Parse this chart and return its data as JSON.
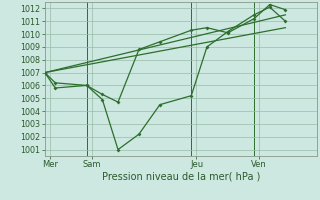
{
  "background_color": "#cce8e0",
  "grid_color": "#99bbaa",
  "line_color": "#2d6e2d",
  "title": "Pression niveau de la mer( hPa )",
  "ylim": [
    1000.5,
    1012.5
  ],
  "yticks": [
    1001,
    1002,
    1003,
    1004,
    1005,
    1006,
    1007,
    1008,
    1009,
    1010,
    1011,
    1012
  ],
  "day_labels": [
    "Mer",
    "Sam",
    "Jeu",
    "Ven"
  ],
  "day_positions": [
    0.5,
    4.5,
    14.5,
    20.5
  ],
  "vline_positions": [
    4,
    14,
    20
  ],
  "xlim": [
    0,
    26
  ],
  "line1_x": [
    0,
    1,
    4,
    5.5,
    7,
    9,
    11,
    14,
    15.5,
    17.5,
    20,
    21.5,
    23
  ],
  "line1_y": [
    1007.0,
    1006.2,
    1006.0,
    1005.3,
    1004.7,
    1008.8,
    1009.4,
    1010.3,
    1010.5,
    1010.1,
    1011.2,
    1012.3,
    1011.9
  ],
  "line2_x": [
    0,
    1,
    4,
    5.5,
    7,
    9,
    11,
    14,
    15.5,
    17.5,
    20,
    21.5,
    23
  ],
  "line2_y": [
    1007.0,
    1005.8,
    1006.0,
    1004.9,
    1001.0,
    1002.2,
    1004.5,
    1005.2,
    1009.0,
    1010.2,
    1011.5,
    1012.1,
    1011.0
  ],
  "line3_x": [
    0,
    23
  ],
  "line3_y": [
    1007.0,
    1011.5
  ],
  "line4_x": [
    0,
    23
  ],
  "line4_y": [
    1007.0,
    1010.5
  ]
}
